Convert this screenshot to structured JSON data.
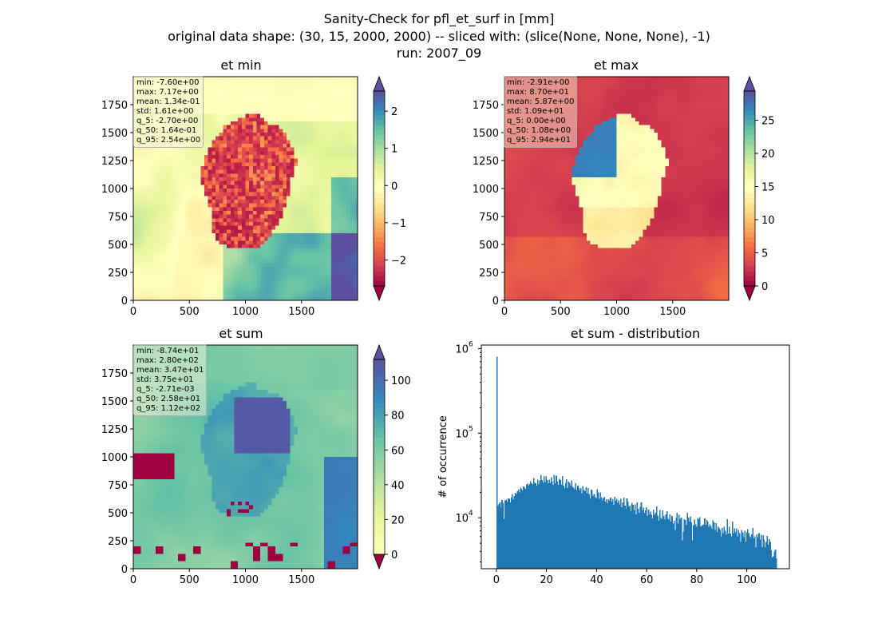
{
  "figure": {
    "title_lines": [
      "Sanity-Check for pfl_et_surf in [mm]",
      "original data shape: (30, 15, 2000, 2000) -- sliced with: (slice(None, None, None), -1)",
      "run: 2007_09"
    ]
  },
  "colors": {
    "spectral": [
      "#9e0142",
      "#d53e4f",
      "#f46d43",
      "#fdae61",
      "#fee08b",
      "#ffffbf",
      "#e6f598",
      "#abdda4",
      "#66c2a5",
      "#3288bd",
      "#5e4fa2"
    ],
    "hist_bar": "#1f77b4"
  },
  "chart_data": [
    {
      "type": "heatmap",
      "title": "et min",
      "xlim": [
        0,
        2000
      ],
      "ylim": [
        0,
        2000
      ],
      "xticks": [
        "0",
        "500",
        "1000",
        "1500"
      ],
      "yticks": [
        "0",
        "250",
        "500",
        "750",
        "1000",
        "1250",
        "1500",
        "1750"
      ],
      "colorbar": {
        "range": [
          -2.7,
          2.54
        ],
        "ticks": [
          "−2",
          "−1",
          "0",
          "1",
          "2"
        ],
        "tick_values": [
          -2,
          -1,
          0,
          1,
          2
        ],
        "extend": "both",
        "cmap": "Spectral"
      },
      "stats": [
        "min: -7.60e+00",
        "max: 7.17e+00",
        "mean: 1.34e-01",
        "std: 1.61e+00",
        "q_5: -2.70e+00",
        "q_50: 1.64e-01",
        "q_95: 2.54e+00"
      ]
    },
    {
      "type": "heatmap",
      "title": "et max",
      "xlim": [
        0,
        2000
      ],
      "ylim": [
        0,
        2000
      ],
      "xticks": [
        "0",
        "500",
        "1000",
        "1500"
      ],
      "yticks": [
        "0",
        "250",
        "500",
        "750",
        "1000",
        "1250",
        "1500",
        "1750"
      ],
      "colorbar": {
        "range": [
          0,
          29.4
        ],
        "ticks": [
          "0",
          "5",
          "10",
          "15",
          "20",
          "25"
        ],
        "tick_values": [
          0,
          5,
          10,
          15,
          20,
          25
        ],
        "extend": "both",
        "cmap": "Spectral"
      },
      "stats": [
        "min: -2.91e+00",
        "max: 8.70e+01",
        "mean: 5.87e+00",
        "std: 1.09e+01",
        "q_5: 0.00e+00",
        "q_50: 1.08e+00",
        "q_95: 2.94e+01"
      ]
    },
    {
      "type": "heatmap",
      "title": "et sum",
      "xlim": [
        0,
        2000
      ],
      "ylim": [
        0,
        2000
      ],
      "xticks": [
        "0",
        "500",
        "1000",
        "1500"
      ],
      "yticks": [
        "0",
        "250",
        "500",
        "750",
        "1000",
        "1250",
        "1500",
        "1750"
      ],
      "colorbar": {
        "range": [
          -0.00271,
          112
        ],
        "ticks": [
          "0",
          "20",
          "40",
          "60",
          "80",
          "100"
        ],
        "tick_values": [
          0,
          20,
          40,
          60,
          80,
          100
        ],
        "extend": "both",
        "cmap": "Spectral (lower half)"
      },
      "stats": [
        "min: -8.74e+01",
        "max: 2.80e+02",
        "mean: 3.47e+01",
        "std: 3.75e+01",
        "q_5: -2.71e-03",
        "q_50: 2.58e+01",
        "q_95: 1.12e+02"
      ]
    },
    {
      "type": "bar",
      "title": "et sum - distribution",
      "xlabel": "",
      "ylabel": "# of occurrence",
      "xlim": [
        -6,
        117
      ],
      "ylim": [
        2500,
        1100000
      ],
      "yscale": "log",
      "xticks": [
        "0",
        "20",
        "40",
        "60",
        "80",
        "100"
      ],
      "xtick_values": [
        0,
        20,
        40,
        60,
        80,
        100
      ],
      "yticks": [
        "10",
        "10",
        "10"
      ],
      "ytick_exponents": [
        "4",
        "5",
        "6"
      ],
      "ytick_values": [
        10000,
        100000,
        1000000
      ],
      "bin_range": [
        0,
        112
      ],
      "peak": {
        "x": 0,
        "count": 800000
      },
      "counts": [
        800000,
        14000,
        14500,
        15200,
        13200,
        16300,
        15100,
        9700,
        16000,
        16400,
        15600,
        17000,
        16800,
        15200,
        17500,
        19000,
        16500,
        18000,
        19800,
        19000,
        20500,
        21500,
        20000,
        22600,
        22000,
        21000,
        23500,
        22800,
        22000,
        24800,
        25300,
        24000,
        25000,
        27000,
        25500,
        24700,
        29500,
        26000,
        25700,
        24000,
        28200,
        25000,
        27500,
        32000,
        28000,
        26000,
        30800,
        26500,
        31200,
        27800,
        25500,
        28200,
        25800,
        30000,
        27000,
        24500,
        32000,
        25500,
        31500,
        26800,
        24500,
        29000,
        27800,
        24800,
        31000,
        24000,
        22500,
        26000,
        28500,
        22500,
        26800,
        25800,
        24000,
        27500,
        23200,
        22800,
        21800,
        25700,
        21200,
        24000,
        22500,
        21000,
        22400,
        19500,
        23600,
        21200,
        20500,
        22900,
        19400,
        22500,
        19000,
        17000,
        21500,
        21200,
        18000,
        19000,
        17500,
        17200,
        21800,
        20000,
        16800,
        19900,
        17500,
        15800,
        17000,
        17600,
        15500,
        16600,
        14800,
        16500,
        16000,
        17400,
        15500,
        16600,
        14200,
        17600,
        15800,
        16800,
        15000,
        16000,
        14400,
        16800,
        13300,
        15200,
        17400,
        14000,
        12800,
        17000,
        15500,
        13500,
        14000,
        12000,
        15000,
        14200,
        12300,
        14400,
        11000,
        15200,
        12800,
        11400,
        13500,
        15200,
        12200,
        13200,
        11500,
        12200,
        13400,
        10500,
        12500,
        11000,
        11800,
        10800,
        9800,
        12500,
        10800,
        11500,
        13600,
        10600,
        9200,
        12400,
        10000,
        9600,
        12200,
        10500,
        9600,
        11000,
        12000,
        9800,
        9500,
        11000,
        9000,
        10500,
        8500,
        9200,
        7200,
        10000,
        11500,
        8500,
        10800,
        9600,
        10000,
        5400,
        6900,
        9600,
        9400,
        8300,
        11400,
        10000,
        9000,
        10400,
        8800,
        5400,
        8200,
        9500,
        8400,
        7800,
        9900,
        9600,
        10200,
        7900,
        8000,
        8300,
        8400,
        9800,
        8300,
        9400,
        9000,
        7800,
        8400,
        8000,
        7400,
        9300,
        8800,
        7200,
        8600,
        6800,
        7900,
        7500,
        7200,
        6000,
        7600,
        6600,
        7800,
        7000,
        6400,
        9600,
        6500,
        7800,
        6500,
        6000,
        9000,
        6600,
        7500,
        6800,
        7500,
        6000,
        7200,
        6600,
        5200,
        7200,
        6700,
        5900,
        7000,
        5200,
        6700,
        7300,
        6600,
        6000,
        5800,
        6400,
        7600,
        5700,
        6000,
        4500,
        6400,
        5900,
        6600,
        5500,
        6300,
        4500,
        6200,
        5500,
        4500,
        5200,
        6100,
        4800,
        5600,
        5200,
        4100,
        3400,
        3500,
        4000,
        4200,
        3300
      ]
    }
  ]
}
